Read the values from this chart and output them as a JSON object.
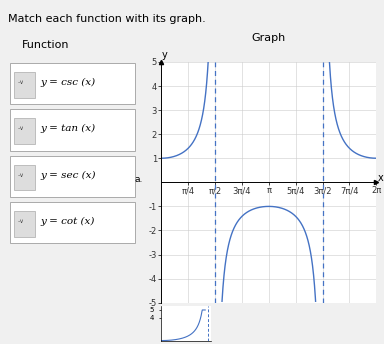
{
  "title_main": "Match each function with its graph.",
  "title_left": "Function",
  "title_right": "Graph",
  "functions": [
    "y = csc (x)",
    "y = tan (x)",
    "y = sec (x)",
    "y = cot (x)"
  ],
  "label_a": "a.",
  "xmin": 0,
  "xmax": 6.2832,
  "ymin": -5,
  "ymax": 5,
  "asymptotes": [
    1.5708,
    4.7124
  ],
  "xtick_labels": [
    "π/4",
    "π/2",
    "3π/4",
    "π",
    "5π/4",
    "3π/2",
    "7π/4",
    "2π"
  ],
  "xtick_values": [
    0.7854,
    1.5708,
    2.3562,
    3.1416,
    3.927,
    4.7124,
    5.4978,
    6.2832
  ],
  "ytick_values": [
    -5,
    -4,
    -3,
    -2,
    -1,
    1,
    2,
    3,
    4,
    5
  ],
  "curve_color": "#4472C4",
  "background_color": "#f0f0f0",
  "graph_bg": "#ffffff",
  "grid_color": "#cccccc",
  "font_size_main_title": 8,
  "font_size_section_title": 8,
  "font_size_func": 7.5,
  "font_size_tick": 6,
  "font_size_axis_label": 7
}
